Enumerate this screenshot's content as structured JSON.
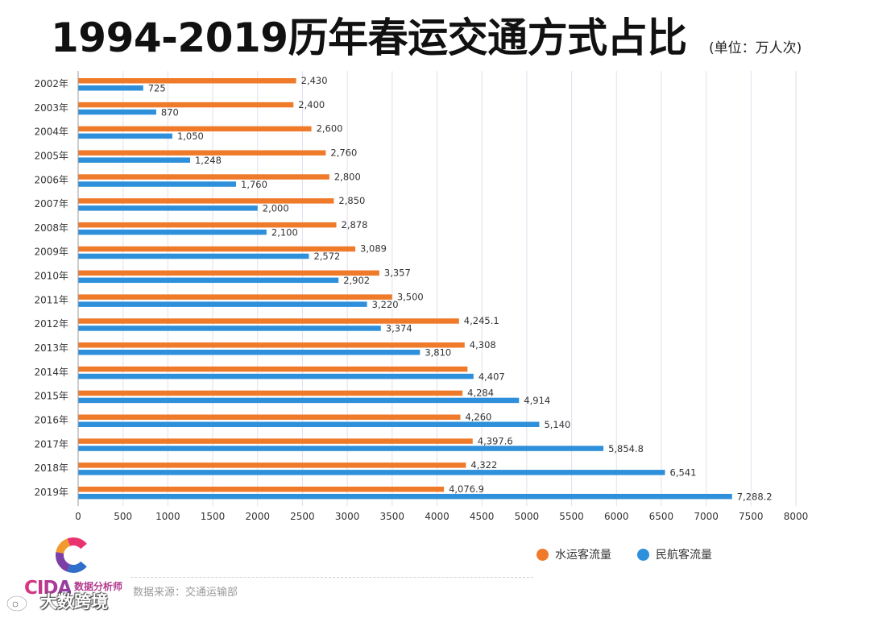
{
  "header": {
    "title": "1994-2019历年春运交通方式占比",
    "unit": "(单位：万人次)"
  },
  "chart_data": {
    "type": "bar",
    "orientation": "horizontal",
    "title": "1994-2019历年春运交通方式占比",
    "unit": "(单位：万人次)",
    "categories": [
      "2002年",
      "2003年",
      "2004年",
      "2005年",
      "2006年",
      "2007年",
      "2008年",
      "2009年",
      "2010年",
      "2011年",
      "2012年",
      "2013年",
      "2014年",
      "2015年",
      "2016年",
      "2017年",
      "2018年",
      "2019年"
    ],
    "series": [
      {
        "name": "水运客流量",
        "color": "#ef7b2a",
        "values": [
          2430,
          2400,
          2600,
          2760,
          2800,
          2850,
          2878,
          3089,
          3357,
          3500,
          4245.1,
          4308,
          4340,
          4284,
          4260,
          4397.6,
          4322,
          4076.9
        ],
        "labels": [
          "2,430",
          "2,400",
          "2,600",
          "2,760",
          "2,800",
          "2,850",
          "2,878",
          "3,089",
          "3,357",
          "3,500",
          "4,245.1",
          "4,308",
          null,
          "4,284",
          "4,260",
          "4,397.6",
          "4,322",
          "4,076.9"
        ]
      },
      {
        "name": "民航客流量",
        "color": "#2e8fda",
        "values": [
          725,
          870,
          1050,
          1248,
          1760,
          2000,
          2100,
          2572,
          2902,
          3220,
          3374,
          3810,
          4407,
          4914,
          5140,
          5854.8,
          6541,
          7288.2
        ],
        "labels": [
          "725",
          "870",
          "1,050",
          "1,248",
          "1,760",
          "2,000",
          "2,100",
          "2,572",
          "2,902",
          "3,220",
          "3,374",
          "3,810",
          "4,407",
          "4,914",
          "5,140",
          "5,854.8",
          "6,541",
          "7,288.2"
        ]
      }
    ],
    "xlim": [
      0,
      8000
    ],
    "xticks": [
      0,
      500,
      1000,
      1500,
      2000,
      2500,
      3000,
      3500,
      4000,
      4500,
      5000,
      5500,
      6000,
      6500,
      7000,
      7500,
      8000
    ],
    "xlabel": "",
    "ylabel": "",
    "grid": true,
    "legend_position": "bottom-right"
  },
  "footer": {
    "logo": {
      "text": "CIDA",
      "subtext": "数据分析师"
    },
    "source": "数据来源：交通运输部",
    "watermark": "大数跨境"
  }
}
